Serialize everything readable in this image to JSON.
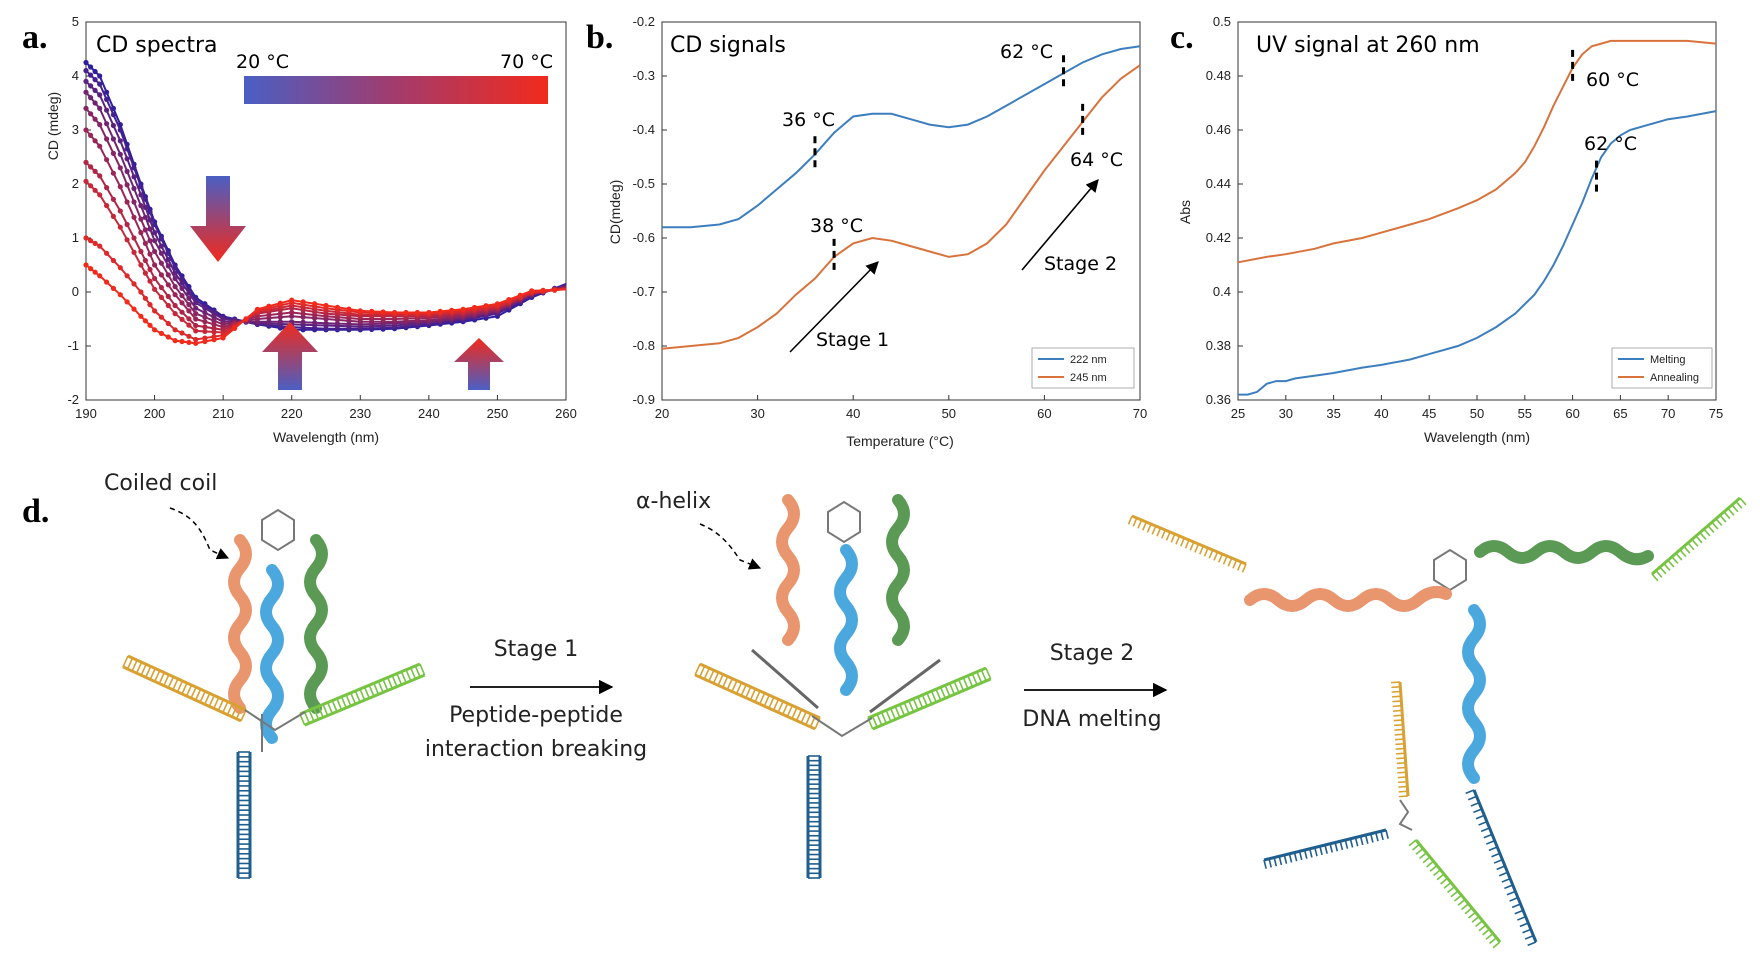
{
  "colors": {
    "blue": "#3d7ebf",
    "orange": "#d9733d",
    "grad_cold": "#4a5fc4",
    "grad_hot": "#ee2a1e",
    "pep_orange": "#e9956d",
    "pep_blue": "#4aa8df",
    "pep_green": "#5b9a55",
    "dna_yellow": "#d9a132",
    "dna_green": "#76c442",
    "dna_navy": "#1f5f8f"
  },
  "panels": {
    "a": {
      "label": "a.",
      "title": "CD spectra",
      "grad_lo": "20 °C",
      "grad_hi": "70 °C"
    },
    "b": {
      "label": "b.",
      "title": "CD signals",
      "ann": {
        "t36": "36 °C",
        "t38": "38 °C",
        "t62": "62 °C",
        "t64": "64 °C",
        "stage1": "Stage 1",
        "stage2": "Stage 2"
      }
    },
    "c": {
      "label": "c.",
      "title": "UV signal at 260 nm",
      "ann": {
        "t60": "60 °C",
        "t62": "62 °C"
      }
    },
    "d": {
      "label": "d.",
      "coiled_coil": "Coiled coil",
      "alpha_helix": "α-helix",
      "stage1": "Stage 1",
      "stage1_desc1": "Peptide-peptide",
      "stage1_desc2": "interaction breaking",
      "stage2": "Stage 2",
      "stage2_desc": "DNA melting"
    }
  },
  "chart_data": [
    {
      "panel": "a",
      "type": "line",
      "title": "CD spectra",
      "xlabel": "Wavelength (nm)",
      "ylabel": "CD (mdeg)",
      "xlim": [
        190,
        260
      ],
      "ylim": [
        -2,
        5
      ],
      "xticks": [
        190,
        200,
        210,
        220,
        230,
        240,
        250,
        260
      ],
      "yticks": [
        -2,
        -1,
        0,
        1,
        2,
        3,
        4,
        5
      ],
      "legend": "gradient bar 20 °C to 70 °C",
      "series": [
        {
          "temp": 20,
          "x": [
            190,
            192,
            195,
            198,
            200,
            203,
            206,
            210,
            215,
            220,
            225,
            230,
            235,
            240,
            245,
            250,
            255,
            260
          ],
          "y": [
            4.25,
            4.0,
            3.1,
            2.0,
            1.3,
            0.5,
            -0.1,
            -0.45,
            -0.6,
            -0.7,
            -0.7,
            -0.7,
            -0.68,
            -0.62,
            -0.55,
            -0.45,
            -0.1,
            0.15
          ]
        },
        {
          "temp": 25,
          "x": [
            190,
            192,
            195,
            198,
            200,
            203,
            206,
            210,
            215,
            220,
            225,
            230,
            235,
            240,
            245,
            250,
            255,
            260
          ],
          "y": [
            4.1,
            3.85,
            3.0,
            1.95,
            1.25,
            0.45,
            -0.15,
            -0.47,
            -0.6,
            -0.65,
            -0.68,
            -0.68,
            -0.66,
            -0.6,
            -0.52,
            -0.4,
            -0.08,
            0.12
          ]
        },
        {
          "temp": 30,
          "x": [
            190,
            192,
            195,
            198,
            200,
            203,
            206,
            210,
            215,
            220,
            225,
            230,
            235,
            240,
            245,
            250,
            255,
            260
          ],
          "y": [
            3.9,
            3.65,
            2.8,
            1.8,
            1.1,
            0.35,
            -0.2,
            -0.5,
            -0.58,
            -0.6,
            -0.62,
            -0.64,
            -0.62,
            -0.57,
            -0.5,
            -0.38,
            -0.06,
            0.12
          ]
        },
        {
          "temp": 35,
          "x": [
            190,
            192,
            195,
            198,
            200,
            203,
            206,
            210,
            215,
            220,
            225,
            230,
            235,
            240,
            245,
            250,
            255,
            260
          ],
          "y": [
            3.7,
            3.4,
            2.55,
            1.6,
            0.95,
            0.25,
            -0.3,
            -0.55,
            -0.55,
            -0.55,
            -0.58,
            -0.6,
            -0.58,
            -0.55,
            -0.48,
            -0.36,
            -0.05,
            0.1
          ]
        },
        {
          "temp": 40,
          "x": [
            190,
            192,
            195,
            198,
            200,
            203,
            206,
            210,
            215,
            220,
            225,
            230,
            235,
            240,
            245,
            250,
            255,
            260
          ],
          "y": [
            3.4,
            3.1,
            2.3,
            1.35,
            0.75,
            0.1,
            -0.4,
            -0.6,
            -0.5,
            -0.45,
            -0.5,
            -0.55,
            -0.55,
            -0.52,
            -0.46,
            -0.34,
            -0.04,
            0.1
          ]
        },
        {
          "temp": 45,
          "x": [
            190,
            192,
            195,
            198,
            200,
            203,
            206,
            210,
            215,
            220,
            225,
            230,
            235,
            240,
            245,
            250,
            255,
            260
          ],
          "y": [
            3.0,
            2.7,
            1.95,
            1.1,
            0.5,
            -0.05,
            -0.5,
            -0.65,
            -0.45,
            -0.38,
            -0.45,
            -0.5,
            -0.5,
            -0.48,
            -0.43,
            -0.32,
            -0.03,
            0.08
          ]
        },
        {
          "temp": 50,
          "x": [
            190,
            192,
            195,
            198,
            200,
            203,
            206,
            210,
            215,
            220,
            225,
            230,
            235,
            240,
            245,
            250,
            255,
            260
          ],
          "y": [
            2.4,
            2.15,
            1.5,
            0.75,
            0.25,
            -0.25,
            -0.62,
            -0.7,
            -0.4,
            -0.3,
            -0.4,
            -0.45,
            -0.45,
            -0.45,
            -0.4,
            -0.3,
            -0.02,
            0.07
          ]
        },
        {
          "temp": 55,
          "x": [
            190,
            192,
            195,
            198,
            200,
            203,
            206,
            210,
            215,
            220,
            225,
            230,
            235,
            240,
            245,
            250,
            255,
            260
          ],
          "y": [
            2.05,
            1.8,
            1.2,
            0.5,
            0.05,
            -0.4,
            -0.72,
            -0.75,
            -0.38,
            -0.25,
            -0.35,
            -0.42,
            -0.42,
            -0.42,
            -0.38,
            -0.28,
            -0.02,
            0.06
          ]
        },
        {
          "temp": 60,
          "x": [
            190,
            192,
            195,
            198,
            200,
            203,
            206,
            210,
            215,
            220,
            225,
            230,
            235,
            240,
            245,
            250,
            255,
            260
          ],
          "y": [
            1.0,
            0.85,
            0.45,
            0.0,
            -0.35,
            -0.7,
            -0.88,
            -0.8,
            -0.35,
            -0.2,
            -0.3,
            -0.38,
            -0.4,
            -0.4,
            -0.35,
            -0.25,
            0.0,
            0.05
          ]
        },
        {
          "temp": 70,
          "x": [
            190,
            192,
            195,
            198,
            200,
            203,
            206,
            210,
            215,
            220,
            225,
            230,
            235,
            240,
            245,
            250,
            255,
            260
          ],
          "y": [
            0.5,
            0.3,
            -0.05,
            -0.45,
            -0.7,
            -0.9,
            -0.95,
            -0.85,
            -0.32,
            -0.15,
            -0.25,
            -0.35,
            -0.38,
            -0.38,
            -0.32,
            -0.22,
            0.02,
            0.05
          ]
        }
      ]
    },
    {
      "panel": "b",
      "type": "line",
      "title": "CD signals",
      "xlabel": "Temperature (°C)",
      "ylabel": "CD(mdeg)",
      "xlim": [
        20,
        70
      ],
      "ylim": [
        -0.9,
        -0.2
      ],
      "xticks": [
        20,
        30,
        40,
        50,
        60,
        70
      ],
      "yticks": [
        -0.9,
        -0.8,
        -0.7,
        -0.6,
        -0.5,
        -0.4,
        -0.3,
        -0.2
      ],
      "legend": "bottom-right",
      "series": [
        {
          "name": "222 nm",
          "x": [
            20,
            23,
            26,
            28,
            30,
            32,
            34,
            36,
            38,
            40,
            42,
            44,
            46,
            48,
            50,
            52,
            54,
            56,
            58,
            60,
            62,
            64,
            66,
            68,
            70
          ],
          "y": [
            -0.58,
            -0.58,
            -0.575,
            -0.565,
            -0.54,
            -0.51,
            -0.48,
            -0.445,
            -0.405,
            -0.375,
            -0.37,
            -0.37,
            -0.38,
            -0.39,
            -0.395,
            -0.39,
            -0.375,
            -0.355,
            -0.335,
            -0.315,
            -0.295,
            -0.275,
            -0.26,
            -0.25,
            -0.245
          ]
        },
        {
          "name": "245 nm",
          "x": [
            20,
            23,
            26,
            28,
            30,
            32,
            34,
            36,
            38,
            40,
            42,
            44,
            46,
            48,
            50,
            52,
            54,
            56,
            58,
            60,
            62,
            64,
            66,
            68,
            70
          ],
          "y": [
            -0.805,
            -0.8,
            -0.795,
            -0.785,
            -0.765,
            -0.74,
            -0.705,
            -0.675,
            -0.635,
            -0.61,
            -0.6,
            -0.605,
            -0.615,
            -0.625,
            -0.635,
            -0.63,
            -0.61,
            -0.575,
            -0.525,
            -0.475,
            -0.43,
            -0.385,
            -0.34,
            -0.305,
            -0.28
          ]
        }
      ]
    },
    {
      "panel": "c",
      "type": "line",
      "title": "UV signal at 260 nm",
      "xlabel": "Wavelength (nm)",
      "ylabel": "Abs",
      "xlim": [
        25,
        75
      ],
      "ylim": [
        0.36,
        0.5
      ],
      "xticks": [
        25,
        30,
        35,
        40,
        45,
        50,
        55,
        60,
        65,
        70,
        75
      ],
      "yticks": [
        0.36,
        0.38,
        0.4,
        0.42,
        0.44,
        0.46,
        0.48,
        0.5
      ],
      "legend": "bottom-right",
      "series": [
        {
          "name": "Melting",
          "x": [
            25,
            26,
            27,
            28,
            29,
            30,
            31,
            33,
            35,
            38,
            40,
            43,
            45,
            48,
            50,
            52,
            54,
            56,
            57,
            58,
            59,
            60,
            61,
            62,
            63,
            64,
            65,
            66,
            68,
            70,
            72,
            75
          ],
          "y": [
            0.362,
            0.362,
            0.363,
            0.366,
            0.367,
            0.367,
            0.368,
            0.369,
            0.37,
            0.372,
            0.373,
            0.375,
            0.377,
            0.38,
            0.383,
            0.387,
            0.392,
            0.399,
            0.404,
            0.41,
            0.417,
            0.425,
            0.433,
            0.442,
            0.45,
            0.455,
            0.458,
            0.46,
            0.462,
            0.464,
            0.465,
            0.467
          ]
        },
        {
          "name": "Annealing",
          "x": [
            25,
            28,
            30,
            33,
            35,
            38,
            40,
            43,
            45,
            48,
            50,
            52,
            54,
            55,
            56,
            57,
            58,
            59,
            60,
            61,
            62,
            63,
            64,
            65,
            67,
            70,
            72,
            75
          ],
          "y": [
            0.411,
            0.413,
            0.414,
            0.416,
            0.418,
            0.42,
            0.422,
            0.425,
            0.427,
            0.431,
            0.434,
            0.438,
            0.444,
            0.448,
            0.454,
            0.461,
            0.469,
            0.476,
            0.483,
            0.488,
            0.491,
            0.492,
            0.493,
            0.493,
            0.493,
            0.493,
            0.493,
            0.492
          ]
        }
      ]
    }
  ]
}
